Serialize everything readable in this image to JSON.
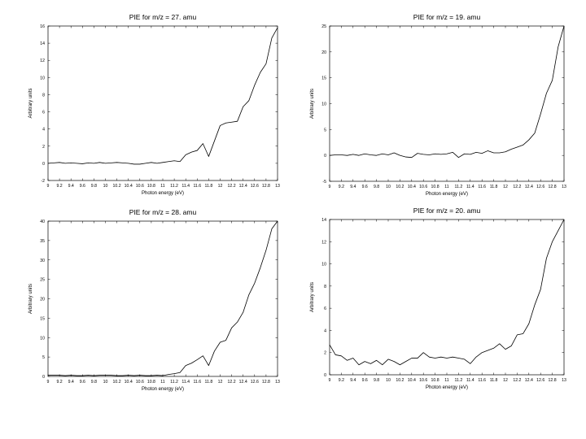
{
  "chart_data": [
    {
      "type": "line",
      "title": "PIE for m/z =  27.   amu",
      "xlabel": "Photon energy (eV)",
      "ylabel": "Arbitrary units",
      "xlim": [
        9,
        13
      ],
      "ylim": [
        -2,
        16
      ],
      "xticks": [
        "9",
        "9.2",
        "9.4",
        "9.6",
        "9.8",
        "10",
        "10.2",
        "10.4",
        "10.6",
        "10.8",
        "11",
        "11.2",
        "11.4",
        "11.6",
        "11.8",
        "12",
        "12.2",
        "12.4",
        "12.6",
        "12.8",
        "13"
      ],
      "xtick_values": [
        9,
        9.2,
        9.4,
        9.6,
        9.8,
        10,
        10.2,
        10.4,
        10.6,
        10.8,
        11,
        11.2,
        11.4,
        11.6,
        11.8,
        12,
        12.2,
        12.4,
        12.6,
        12.8,
        13
      ],
      "yticks": [
        "-2",
        "0",
        "2",
        "4",
        "6",
        "8",
        "10",
        "12",
        "14",
        "16"
      ],
      "ytick_values": [
        -2,
        0,
        2,
        4,
        6,
        8,
        10,
        12,
        14,
        16
      ],
      "grid": false,
      "x": [
        9,
        9.1,
        9.2,
        9.3,
        9.4,
        9.5,
        9.6,
        9.7,
        9.8,
        9.9,
        10,
        10.1,
        10.2,
        10.3,
        10.4,
        10.5,
        10.6,
        10.7,
        10.8,
        10.9,
        11,
        11.1,
        11.2,
        11.3,
        11.4,
        11.5,
        11.6,
        11.7,
        11.8,
        11.9,
        12,
        12.1,
        12.2,
        12.3,
        12.4,
        12.5,
        12.6,
        12.7,
        12.8,
        12.9,
        13
      ],
      "y": [
        0,
        0.05,
        0.1,
        0,
        0.05,
        0,
        -0.05,
        0.05,
        0,
        0.1,
        0,
        0.05,
        0.1,
        0.05,
        0,
        -0.1,
        -0.1,
        0,
        0.1,
        0,
        0.1,
        0.2,
        0.3,
        0.2,
        1,
        1.3,
        1.5,
        2.3,
        0.8,
        2.6,
        4.4,
        4.7,
        4.8,
        4.9,
        6.6,
        7.3,
        9.1,
        10.6,
        11.6,
        14.6,
        15.8
      ]
    },
    {
      "type": "line",
      "title": "PIE for m/z =  19.   amu",
      "xlabel": "Photon energy (eV)",
      "ylabel": "Arbitrary units",
      "xlim": [
        9,
        13
      ],
      "ylim": [
        -5,
        25
      ],
      "xticks": [
        "9",
        "9.2",
        "9.4",
        "9.6",
        "9.8",
        "10",
        "10.2",
        "10.4",
        "10.6",
        "10.8",
        "11",
        "11.2",
        "11.4",
        "11.6",
        "11.8",
        "12",
        "12.2",
        "12.4",
        "12.6",
        "12.8",
        "13"
      ],
      "xtick_values": [
        9,
        9.2,
        9.4,
        9.6,
        9.8,
        10,
        10.2,
        10.4,
        10.6,
        10.8,
        11,
        11.2,
        11.4,
        11.6,
        11.8,
        12,
        12.2,
        12.4,
        12.6,
        12.8,
        13
      ],
      "yticks": [
        "-5",
        "0",
        "5",
        "10",
        "15",
        "20",
        "25"
      ],
      "ytick_values": [
        -5,
        0,
        5,
        10,
        15,
        20,
        25
      ],
      "grid": false,
      "x": [
        9,
        9.1,
        9.2,
        9.3,
        9.4,
        9.5,
        9.6,
        9.7,
        9.8,
        9.9,
        10,
        10.1,
        10.2,
        10.3,
        10.4,
        10.5,
        10.6,
        10.7,
        10.8,
        10.9,
        11,
        11.1,
        11.2,
        11.3,
        11.4,
        11.5,
        11.6,
        11.7,
        11.8,
        11.9,
        12,
        12.1,
        12.2,
        12.3,
        12.4,
        12.5,
        12.6,
        12.7,
        12.8,
        12.9,
        13
      ],
      "y": [
        0,
        0.1,
        0.1,
        0,
        0.2,
        0,
        0.3,
        0.1,
        0,
        0.3,
        0.1,
        0.5,
        0,
        -0.3,
        -0.4,
        0.4,
        0.2,
        0.1,
        0.3,
        0.2,
        0.3,
        0.6,
        -0.4,
        0.3,
        0.2,
        0.6,
        0.4,
        0.9,
        0.5,
        0.5,
        0.7,
        1.2,
        1.6,
        2,
        3,
        4.3,
        8,
        12,
        14.5,
        21,
        25
      ]
    },
    {
      "type": "line",
      "title": "PIE for m/z =  28.   amu",
      "xlabel": "Photon energy (eV)",
      "ylabel": "Arbitrary units",
      "xlim": [
        9,
        13
      ],
      "ylim": [
        0,
        40
      ],
      "xticks": [
        "9",
        "9.2",
        "9.4",
        "9.6",
        "9.8",
        "10",
        "10.2",
        "10.4",
        "10.6",
        "10.8",
        "11",
        "11.2",
        "11.4",
        "11.6",
        "11.8",
        "12",
        "12.2",
        "12.4",
        "12.6",
        "12.8",
        "13"
      ],
      "xtick_values": [
        9,
        9.2,
        9.4,
        9.6,
        9.8,
        10,
        10.2,
        10.4,
        10.6,
        10.8,
        11,
        11.2,
        11.4,
        11.6,
        11.8,
        12,
        12.2,
        12.4,
        12.6,
        12.8,
        13
      ],
      "yticks": [
        "0",
        "5",
        "10",
        "15",
        "20",
        "25",
        "30",
        "35",
        "40"
      ],
      "ytick_values": [
        0,
        5,
        10,
        15,
        20,
        25,
        30,
        35,
        40
      ],
      "grid": false,
      "x": [
        9,
        9.1,
        9.2,
        9.3,
        9.4,
        9.5,
        9.6,
        9.7,
        9.8,
        9.9,
        10,
        10.1,
        10.2,
        10.3,
        10.4,
        10.5,
        10.6,
        10.7,
        10.8,
        10.9,
        11,
        11.1,
        11.2,
        11.3,
        11.4,
        11.5,
        11.6,
        11.7,
        11.8,
        11.9,
        12,
        12.1,
        12.2,
        12.3,
        12.4,
        12.5,
        12.6,
        12.7,
        12.8,
        12.9,
        13
      ],
      "y": [
        0.3,
        0.3,
        0.3,
        0.2,
        0.3,
        0.2,
        0.2,
        0.3,
        0.2,
        0.3,
        0.3,
        0.3,
        0.2,
        0.2,
        0.3,
        0.2,
        0.3,
        0.2,
        0.2,
        0.3,
        0.2,
        0.5,
        0.7,
        1,
        2.8,
        3.4,
        4.3,
        5.3,
        2.8,
        6.5,
        8.8,
        9.3,
        12.5,
        14,
        16.5,
        21,
        24,
        28,
        32.5,
        38,
        40
      ]
    },
    {
      "type": "line",
      "title": "PIE for m/z =  20.   amu",
      "xlabel": "Photon energy (eV)",
      "ylabel": "Arbitrary units",
      "xlim": [
        9,
        13
      ],
      "ylim": [
        0,
        14
      ],
      "xticks": [
        "9",
        "9.2",
        "9.4",
        "9.6",
        "9.8",
        "10",
        "10.2",
        "10.4",
        "10.6",
        "10.8",
        "11",
        "11.2",
        "11.4",
        "11.6",
        "11.8",
        "12",
        "12.2",
        "12.4",
        "12.6",
        "12.8",
        "13"
      ],
      "xtick_values": [
        9,
        9.2,
        9.4,
        9.6,
        9.8,
        10,
        10.2,
        10.4,
        10.6,
        10.8,
        11,
        11.2,
        11.4,
        11.6,
        11.8,
        12,
        12.2,
        12.4,
        12.6,
        12.8,
        13
      ],
      "yticks": [
        "0",
        "2",
        "4",
        "6",
        "8",
        "10",
        "12",
        "14"
      ],
      "ytick_values": [
        0,
        2,
        4,
        6,
        8,
        10,
        12,
        14
      ],
      "grid": false,
      "x": [
        9,
        9.1,
        9.2,
        9.3,
        9.4,
        9.5,
        9.6,
        9.7,
        9.8,
        9.9,
        10,
        10.1,
        10.2,
        10.3,
        10.4,
        10.5,
        10.6,
        10.7,
        10.8,
        10.9,
        11,
        11.1,
        11.2,
        11.3,
        11.4,
        11.5,
        11.6,
        11.7,
        11.8,
        11.9,
        12,
        12.1,
        12.2,
        12.3,
        12.4,
        12.5,
        12.6,
        12.7,
        12.8,
        12.9,
        13
      ],
      "y": [
        2.7,
        1.8,
        1.7,
        1.3,
        1.5,
        0.9,
        1.2,
        1.0,
        1.3,
        0.9,
        1.4,
        1.2,
        0.9,
        1.2,
        1.5,
        1.5,
        2.0,
        1.6,
        1.5,
        1.6,
        1.5,
        1.6,
        1.5,
        1.4,
        1.0,
        1.6,
        2.0,
        2.2,
        2.4,
        2.8,
        2.3,
        2.6,
        3.6,
        3.7,
        4.6,
        6.3,
        7.7,
        10.5,
        12.0,
        13.0,
        14.0
      ]
    }
  ]
}
